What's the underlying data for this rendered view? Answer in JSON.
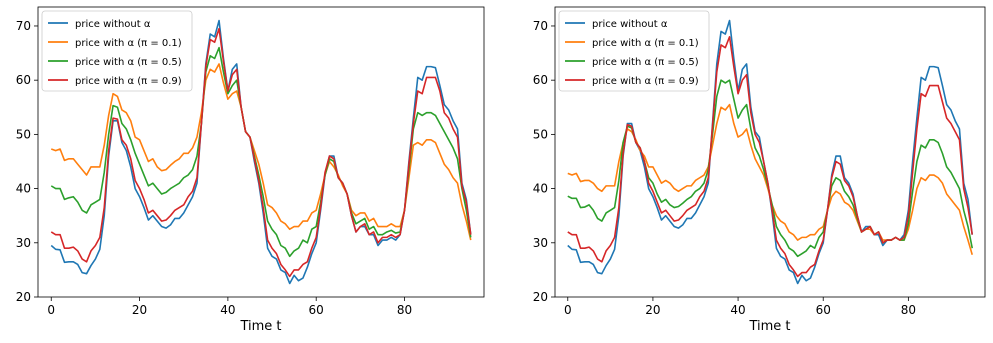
{
  "chart_data": [
    {
      "type": "line",
      "xlabel": "Time t",
      "ylabel": "",
      "xlim": [
        -3,
        98
      ],
      "ylim": [
        20,
        73.5
      ],
      "xticks": [
        0,
        20,
        40,
        60,
        80
      ],
      "yticks": [
        20,
        30,
        40,
        50,
        60,
        70
      ],
      "legend_position": "top-left",
      "x": [
        0,
        1,
        2,
        3,
        4,
        5,
        6,
        7,
        8,
        9,
        10,
        11,
        12,
        13,
        14,
        15,
        16,
        17,
        18,
        19,
        20,
        21,
        22,
        23,
        24,
        25,
        26,
        27,
        28,
        29,
        30,
        31,
        32,
        33,
        34,
        35,
        36,
        37,
        38,
        39,
        40,
        41,
        42,
        43,
        44,
        45,
        46,
        47,
        48,
        49,
        50,
        51,
        52,
        53,
        54,
        55,
        56,
        57,
        58,
        59,
        60,
        61,
        62,
        63,
        64,
        65,
        66,
        67,
        68,
        69,
        70,
        71,
        72,
        73,
        74,
        75,
        76,
        77,
        78,
        79,
        80,
        81,
        82,
        83,
        84,
        85,
        86,
        87,
        88,
        89,
        90,
        91,
        92,
        93,
        94,
        95
      ],
      "series": [
        {
          "name": "price without α",
          "color": "#1f77b4",
          "values": [
            29.5,
            28.8,
            28.7,
            26.4,
            26.5,
            26.5,
            26.0,
            24.5,
            24.3,
            25.8,
            27.0,
            28.8,
            35.0,
            46.0,
            52.5,
            52.5,
            48.5,
            47.0,
            44.0,
            40.0,
            38.5,
            36.5,
            34.2,
            35.0,
            34.0,
            33.0,
            32.7,
            33.3,
            34.5,
            34.5,
            35.5,
            37.0,
            38.5,
            41.0,
            52.0,
            63.0,
            68.5,
            68.0,
            71.0,
            64.0,
            58.0,
            62.0,
            63.0,
            55.0,
            50.5,
            49.5,
            45.0,
            41.0,
            35.5,
            29.0,
            27.5,
            27.0,
            25.0,
            24.5,
            22.5,
            24.0,
            23.0,
            23.5,
            25.5,
            28.0,
            30.0,
            36.0,
            42.5,
            46.0,
            46.0,
            42.0,
            41.0,
            39.0,
            35.0,
            32.0,
            33.0,
            33.0,
            31.5,
            31.5,
            29.5,
            30.5,
            30.5,
            31.0,
            30.5,
            31.5,
            36.0,
            45.0,
            53.0,
            60.5,
            60.0,
            62.5,
            62.5,
            62.3,
            59.0,
            55.5,
            54.5,
            52.5,
            51.0,
            41.0,
            38.0,
            31.5
          ]
        },
        {
          "name": "price with α (π = 0.1)",
          "color": "#ff7f0e",
          "values": [
            47.3,
            47.0,
            47.3,
            45.2,
            45.5,
            45.5,
            44.5,
            43.5,
            42.5,
            44.0,
            44.0,
            44.0,
            48.0,
            53.5,
            57.5,
            57.0,
            54.5,
            54.0,
            52.5,
            49.5,
            49.0,
            47.0,
            45.0,
            45.5,
            44.0,
            43.3,
            43.5,
            44.3,
            45.0,
            45.5,
            46.5,
            46.5,
            47.5,
            49.5,
            54.0,
            60.0,
            62.0,
            61.5,
            63.0,
            59.5,
            56.5,
            57.5,
            58.0,
            55.0,
            50.5,
            49.5,
            47.0,
            44.5,
            41.0,
            37.0,
            36.5,
            35.5,
            34.0,
            33.5,
            32.5,
            33.0,
            33.0,
            34.0,
            34.0,
            35.5,
            36.0,
            39.0,
            42.5,
            45.0,
            44.0,
            42.5,
            40.5,
            39.0,
            36.0,
            35.0,
            35.5,
            35.5,
            34.0,
            34.5,
            33.0,
            33.0,
            33.0,
            33.5,
            33.0,
            33.0,
            36.0,
            42.0,
            48.0,
            48.5,
            48.0,
            49.0,
            49.0,
            48.5,
            46.5,
            44.5,
            43.5,
            42.0,
            41.0,
            37.0,
            34.0,
            30.5
          ]
        },
        {
          "name": "price with α (π = 0.5)",
          "color": "#2ca02c",
          "values": [
            40.5,
            40.0,
            40.0,
            38.0,
            38.3,
            38.5,
            37.5,
            36.0,
            35.5,
            37.0,
            37.5,
            38.0,
            43.0,
            50.0,
            55.3,
            55.0,
            52.0,
            51.0,
            49.0,
            46.5,
            44.5,
            42.5,
            40.5,
            41.0,
            40.0,
            39.0,
            39.3,
            40.0,
            40.5,
            41.0,
            42.0,
            42.5,
            43.5,
            46.0,
            52.0,
            61.5,
            64.5,
            64.0,
            66.0,
            61.5,
            57.5,
            59.0,
            60.0,
            55.0,
            50.5,
            49.5,
            46.0,
            42.5,
            38.5,
            34.0,
            32.5,
            31.5,
            29.5,
            29.0,
            27.5,
            28.5,
            29.0,
            30.5,
            30.0,
            32.5,
            33.0,
            37.5,
            42.5,
            45.5,
            45.0,
            42.0,
            41.0,
            39.0,
            35.5,
            33.5,
            34.0,
            34.5,
            32.5,
            33.0,
            31.5,
            31.5,
            32.0,
            32.3,
            31.8,
            32.0,
            36.0,
            43.5,
            51.0,
            54.0,
            53.5,
            54.0,
            54.0,
            53.5,
            52.0,
            50.5,
            49.0,
            47.5,
            45.5,
            40.0,
            36.0,
            31.0
          ]
        },
        {
          "name": "price with α (π = 0.9)",
          "color": "#d62728",
          "values": [
            32.0,
            31.5,
            31.5,
            29.0,
            29.0,
            29.2,
            28.5,
            27.0,
            26.5,
            28.5,
            29.5,
            31.0,
            36.5,
            47.0,
            53.0,
            52.8,
            49.0,
            48.0,
            45.5,
            41.5,
            40.0,
            38.0,
            35.5,
            36.0,
            35.0,
            34.0,
            34.2,
            35.0,
            36.0,
            36.5,
            37.0,
            38.5,
            39.5,
            42.0,
            52.0,
            62.5,
            67.5,
            67.0,
            69.5,
            63.5,
            58.0,
            61.0,
            62.0,
            55.0,
            50.5,
            49.5,
            45.5,
            41.5,
            36.5,
            30.5,
            29.0,
            28.0,
            26.0,
            25.0,
            23.8,
            25.0,
            25.0,
            26.0,
            26.5,
            29.0,
            31.0,
            36.5,
            43.0,
            46.0,
            45.5,
            42.0,
            41.0,
            39.0,
            35.0,
            32.0,
            33.0,
            33.5,
            31.5,
            32.0,
            30.0,
            31.0,
            31.0,
            31.5,
            31.0,
            31.5,
            36.0,
            44.5,
            52.0,
            58.0,
            57.5,
            60.5,
            60.5,
            60.5,
            58.0,
            54.0,
            53.0,
            51.0,
            49.5,
            40.5,
            37.5,
            31.5
          ]
        }
      ]
    },
    {
      "type": "line",
      "xlabel": "Time t",
      "ylabel": "",
      "xlim": [
        -3,
        98
      ],
      "ylim": [
        20,
        73.5
      ],
      "xticks": [
        0,
        20,
        40,
        60,
        80
      ],
      "yticks": [
        20,
        30,
        40,
        50,
        60,
        70
      ],
      "legend_position": "top-left",
      "x": [
        0,
        1,
        2,
        3,
        4,
        5,
        6,
        7,
        8,
        9,
        10,
        11,
        12,
        13,
        14,
        15,
        16,
        17,
        18,
        19,
        20,
        21,
        22,
        23,
        24,
        25,
        26,
        27,
        28,
        29,
        30,
        31,
        32,
        33,
        34,
        35,
        36,
        37,
        38,
        39,
        40,
        41,
        42,
        43,
        44,
        45,
        46,
        47,
        48,
        49,
        50,
        51,
        52,
        53,
        54,
        55,
        56,
        57,
        58,
        59,
        60,
        61,
        62,
        63,
        64,
        65,
        66,
        67,
        68,
        69,
        70,
        71,
        72,
        73,
        74,
        75,
        76,
        77,
        78,
        79,
        80,
        81,
        82,
        83,
        84,
        85,
        86,
        87,
        88,
        89,
        90,
        91,
        92,
        93,
        94,
        95
      ],
      "series": [
        {
          "name": "price without α",
          "color": "#1f77b4",
          "values": [
            29.5,
            28.8,
            28.7,
            26.4,
            26.5,
            26.5,
            26.0,
            24.5,
            24.3,
            25.8,
            27.0,
            28.8,
            35.0,
            46.0,
            52.0,
            52.0,
            48.5,
            47.0,
            44.0,
            40.0,
            38.5,
            36.5,
            34.2,
            35.0,
            34.0,
            33.0,
            32.7,
            33.3,
            34.5,
            34.5,
            35.5,
            37.0,
            38.5,
            41.0,
            52.0,
            63.0,
            69.0,
            68.5,
            71.0,
            64.0,
            58.0,
            62.0,
            63.0,
            55.0,
            50.5,
            49.5,
            45.0,
            41.0,
            35.5,
            29.0,
            27.5,
            27.0,
            25.0,
            24.5,
            22.5,
            24.0,
            23.0,
            23.5,
            25.5,
            28.0,
            30.0,
            36.0,
            42.5,
            46.0,
            46.0,
            42.0,
            41.0,
            39.0,
            35.0,
            32.0,
            33.0,
            33.0,
            31.5,
            31.5,
            29.5,
            30.5,
            30.5,
            31.0,
            30.5,
            31.5,
            36.0,
            45.0,
            53.0,
            60.5,
            60.0,
            62.5,
            62.5,
            62.3,
            59.0,
            55.5,
            54.5,
            52.5,
            51.0,
            41.0,
            38.0,
            31.5
          ]
        },
        {
          "name": "price with α (π = 0.1)",
          "color": "#ff7f0e",
          "values": [
            42.8,
            42.5,
            42.8,
            41.3,
            41.5,
            41.5,
            41.0,
            40.0,
            39.5,
            40.5,
            40.5,
            40.5,
            45.0,
            48.5,
            51.0,
            50.5,
            49.0,
            47.0,
            46.0,
            44.0,
            44.0,
            42.5,
            41.0,
            41.5,
            41.0,
            40.0,
            39.5,
            40.0,
            40.5,
            40.5,
            41.5,
            42.0,
            42.5,
            44.0,
            48.0,
            52.0,
            55.0,
            54.5,
            55.5,
            52.0,
            49.5,
            50.0,
            51.0,
            48.0,
            45.5,
            44.0,
            42.5,
            40.0,
            37.0,
            35.0,
            34.0,
            33.5,
            32.0,
            31.5,
            30.5,
            31.0,
            31.0,
            31.5,
            31.5,
            32.5,
            33.0,
            36.0,
            38.5,
            39.5,
            39.0,
            37.5,
            37.0,
            36.0,
            34.0,
            32.0,
            32.5,
            32.5,
            31.5,
            32.0,
            30.5,
            30.5,
            30.5,
            31.0,
            30.5,
            30.5,
            32.5,
            36.0,
            40.0,
            42.0,
            41.5,
            42.5,
            42.5,
            42.0,
            41.0,
            39.0,
            38.0,
            37.0,
            36.0,
            33.0,
            30.5,
            27.8
          ]
        },
        {
          "name": "price with α (π = 0.5)",
          "color": "#2ca02c",
          "values": [
            38.6,
            38.2,
            38.2,
            36.5,
            36.6,
            37.0,
            36.0,
            34.5,
            34.0,
            35.5,
            36.0,
            36.5,
            41.5,
            48.5,
            51.5,
            51.2,
            48.5,
            47.5,
            45.0,
            42.0,
            41.0,
            39.0,
            37.5,
            38.0,
            37.0,
            36.5,
            36.7,
            37.3,
            38.0,
            38.5,
            39.5,
            40.0,
            41.0,
            43.5,
            50.0,
            57.0,
            60.0,
            59.5,
            60.0,
            56.5,
            53.0,
            54.5,
            55.5,
            51.0,
            47.5,
            46.0,
            43.5,
            40.5,
            37.0,
            33.0,
            31.5,
            30.5,
            29.0,
            28.5,
            27.5,
            28.0,
            28.5,
            29.5,
            29.0,
            31.0,
            32.0,
            36.0,
            40.5,
            42.0,
            41.5,
            39.5,
            38.5,
            37.0,
            34.5,
            32.0,
            32.5,
            33.0,
            31.5,
            32.0,
            30.0,
            30.5,
            30.5,
            31.0,
            30.5,
            30.5,
            33.5,
            39.5,
            45.0,
            48.0,
            47.5,
            49.0,
            49.0,
            48.5,
            46.5,
            44.0,
            43.0,
            41.5,
            40.0,
            36.0,
            33.0,
            29.0
          ]
        },
        {
          "name": "price with α (π = 0.9)",
          "color": "#d62728",
          "values": [
            32.0,
            31.5,
            31.5,
            29.0,
            29.0,
            29.2,
            28.5,
            27.0,
            26.5,
            28.5,
            29.5,
            31.0,
            36.5,
            46.5,
            51.8,
            51.5,
            48.5,
            47.5,
            45.0,
            41.0,
            39.5,
            37.5,
            35.5,
            36.0,
            35.0,
            34.0,
            34.2,
            35.0,
            36.0,
            36.5,
            37.0,
            38.5,
            39.5,
            42.0,
            51.5,
            61.5,
            66.5,
            66.0,
            68.0,
            62.5,
            57.5,
            60.0,
            61.0,
            54.0,
            50.0,
            48.5,
            45.0,
            41.0,
            36.0,
            30.5,
            29.0,
            28.0,
            26.0,
            25.0,
            23.8,
            24.5,
            24.5,
            25.5,
            26.0,
            28.5,
            30.5,
            36.0,
            42.0,
            45.0,
            44.5,
            41.5,
            40.5,
            38.5,
            35.0,
            32.0,
            32.5,
            33.0,
            31.5,
            32.0,
            30.0,
            30.5,
            30.5,
            31.0,
            30.5,
            31.0,
            35.0,
            43.0,
            51.0,
            57.5,
            57.0,
            59.0,
            59.0,
            59.0,
            56.0,
            53.0,
            52.0,
            50.5,
            49.0,
            40.0,
            36.5,
            31.5
          ]
        }
      ]
    }
  ]
}
